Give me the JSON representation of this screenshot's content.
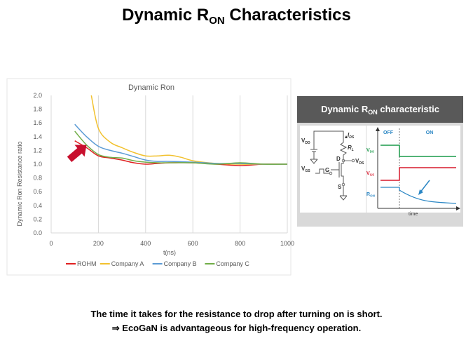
{
  "page": {
    "title_main": "Dynamic R",
    "title_sub": "ON",
    "title_tail": " Characteristics",
    "caption_line1": "The time it takes for the resistance to drop after turning on is short.",
    "caption_line2": "⇒ EcoGaN is advantageous for high-frequency operation."
  },
  "chart_data": {
    "type": "line",
    "title": "Dynamic Ron",
    "xlabel": "t(ns)",
    "ylabel": "Dynamic Ron Resistance ratio",
    "xlim": [
      0,
      1000
    ],
    "ylim": [
      0,
      2.0
    ],
    "xticks": [
      0,
      200,
      400,
      600,
      800,
      1000
    ],
    "yticks": [
      "0.0",
      "0.2",
      "0.4",
      "0.6",
      "0.8",
      "1.0",
      "1.2",
      "1.4",
      "1.6",
      "1.8",
      "2.0"
    ],
    "grid": "vertical",
    "legend_position": "bottom",
    "series": [
      {
        "name": "ROHM",
        "color": "#e02020",
        "points": [
          [
            100,
            1.34
          ],
          [
            150,
            1.24
          ],
          [
            200,
            1.12
          ],
          [
            250,
            1.09
          ],
          [
            300,
            1.06
          ],
          [
            350,
            1.02
          ],
          [
            400,
            1.0
          ],
          [
            450,
            1.01
          ],
          [
            500,
            1.02
          ],
          [
            600,
            1.02
          ],
          [
            700,
            1.0
          ],
          [
            800,
            0.98
          ],
          [
            900,
            1.0
          ],
          [
            1000,
            1.0
          ]
        ]
      },
      {
        "name": "Company A",
        "color": "#f2c12e",
        "points": [
          [
            170,
            2.0
          ],
          [
            200,
            1.52
          ],
          [
            250,
            1.32
          ],
          [
            300,
            1.24
          ],
          [
            350,
            1.17
          ],
          [
            400,
            1.12
          ],
          [
            450,
            1.12
          ],
          [
            500,
            1.13
          ],
          [
            550,
            1.1
          ],
          [
            600,
            1.05
          ],
          [
            700,
            1.01
          ],
          [
            800,
            1.0
          ],
          [
            900,
            1.0
          ],
          [
            1000,
            1.0
          ]
        ]
      },
      {
        "name": "Company B",
        "color": "#5b9bd5",
        "points": [
          [
            100,
            1.58
          ],
          [
            150,
            1.4
          ],
          [
            200,
            1.26
          ],
          [
            250,
            1.2
          ],
          [
            300,
            1.16
          ],
          [
            350,
            1.11
          ],
          [
            400,
            1.06
          ],
          [
            450,
            1.04
          ],
          [
            500,
            1.04
          ],
          [
            600,
            1.03
          ],
          [
            700,
            1.01
          ],
          [
            800,
            1.01
          ],
          [
            900,
            1.0
          ],
          [
            1000,
            1.0
          ]
        ]
      },
      {
        "name": "Company C",
        "color": "#70ad47",
        "points": [
          [
            100,
            1.48
          ],
          [
            150,
            1.28
          ],
          [
            200,
            1.14
          ],
          [
            250,
            1.1
          ],
          [
            300,
            1.09
          ],
          [
            350,
            1.05
          ],
          [
            400,
            1.03
          ],
          [
            450,
            1.02
          ],
          [
            500,
            1.02
          ],
          [
            600,
            1.02
          ],
          [
            700,
            1.0
          ],
          [
            800,
            1.02
          ],
          [
            900,
            1.0
          ],
          [
            1000,
            1.0
          ]
        ]
      }
    ],
    "annotation": {
      "type": "arrow",
      "color": "#c8102e",
      "target": [
        150,
        1.28
      ]
    }
  },
  "diagram": {
    "header_main": "Dynamic R",
    "header_sub": "ON",
    "header_tail": " characteristic",
    "circuit": {
      "vdd_main": "V",
      "vdd_sub": "DD",
      "ids_main": "I",
      "ids_sub": "DS",
      "rl_main": "R",
      "rl_sub": "L",
      "d_label": "D",
      "vds_main": "V",
      "vds_sub": "DS",
      "vgs_main": "V",
      "vgs_sub": "GS",
      "g_label": "G",
      "s_label": "S"
    },
    "timing": {
      "off_label": "OFF",
      "on_label": "ON",
      "vds_main": "V",
      "vds_sub": "DS",
      "vgs_main": "V",
      "vgs_sub": "GS",
      "ron_main": "R",
      "ron_sub": "ON",
      "time_label": "time",
      "colors": {
        "vds": "#1a9a4a",
        "vgs": "#d7192c",
        "ron": "#2a86c4",
        "arrow": "#2a86c4",
        "header": "#595959"
      }
    }
  }
}
